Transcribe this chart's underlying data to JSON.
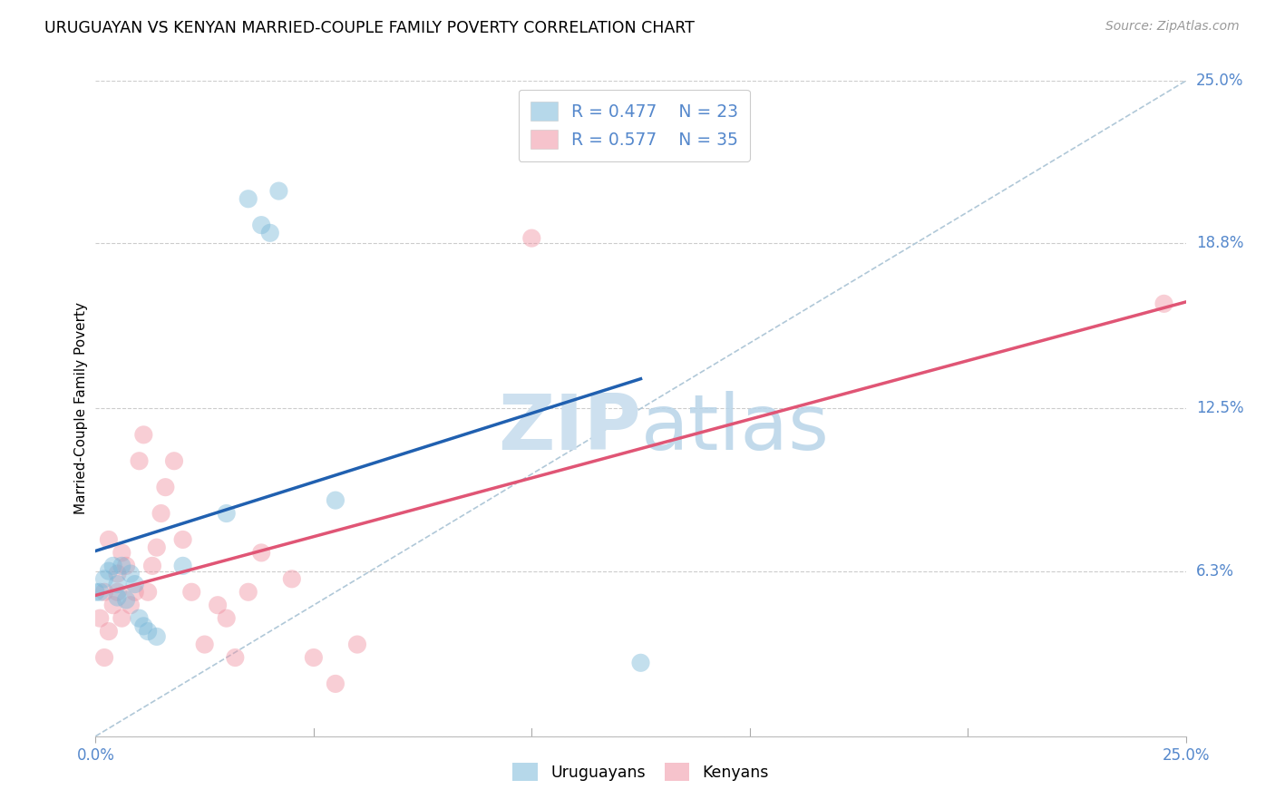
{
  "title": "URUGUAYAN VS KENYAN MARRIED-COUPLE FAMILY POVERTY CORRELATION CHART",
  "source": "Source: ZipAtlas.com",
  "ylabel": "Married-Couple Family Poverty",
  "ytick_values": [
    0.0,
    6.3,
    12.5,
    18.8,
    25.0
  ],
  "xmin": 0.0,
  "xmax": 25.0,
  "ymin": 0.0,
  "ymax": 25.0,
  "legend_r_blue": "R = 0.477",
  "legend_n_blue": "N = 23",
  "legend_r_pink": "R = 0.577",
  "legend_n_pink": "N = 35",
  "blue_scatter_color": "#7ab8d9",
  "pink_scatter_color": "#f093a3",
  "blue_line_color": "#2060b0",
  "pink_line_color": "#e05575",
  "diag_color": "#b0c8d8",
  "watermark_color": "#cde0ef",
  "tick_color": "#5588cc",
  "uruguayan_x": [
    0.0,
    0.1,
    0.2,
    0.3,
    0.4,
    0.5,
    0.5,
    0.6,
    0.7,
    0.8,
    0.9,
    1.0,
    1.1,
    1.2,
    1.4,
    2.0,
    3.5,
    3.8,
    4.0,
    4.2,
    5.5,
    12.5,
    3.0
  ],
  "uruguayan_y": [
    5.5,
    5.5,
    6.0,
    6.3,
    6.5,
    5.8,
    5.3,
    6.5,
    5.2,
    6.2,
    5.8,
    4.5,
    4.2,
    4.0,
    3.8,
    6.5,
    20.5,
    19.5,
    19.2,
    20.8,
    9.0,
    2.8,
    8.5
  ],
  "kenyan_x": [
    0.1,
    0.2,
    0.2,
    0.3,
    0.3,
    0.4,
    0.5,
    0.5,
    0.6,
    0.6,
    0.7,
    0.8,
    0.9,
    1.0,
    1.1,
    1.2,
    1.3,
    1.4,
    1.5,
    1.6,
    1.8,
    2.0,
    2.2,
    2.5,
    2.8,
    3.0,
    3.2,
    3.5,
    3.8,
    4.5,
    5.0,
    5.5,
    6.0,
    10.0,
    24.5
  ],
  "kenyan_y": [
    4.5,
    3.0,
    5.5,
    7.5,
    4.0,
    5.0,
    5.5,
    6.2,
    4.5,
    7.0,
    6.5,
    5.0,
    5.5,
    10.5,
    11.5,
    5.5,
    6.5,
    7.2,
    8.5,
    9.5,
    10.5,
    7.5,
    5.5,
    3.5,
    5.0,
    4.5,
    3.0,
    5.5,
    7.0,
    6.0,
    3.0,
    2.0,
    3.5,
    19.0,
    16.5
  ]
}
